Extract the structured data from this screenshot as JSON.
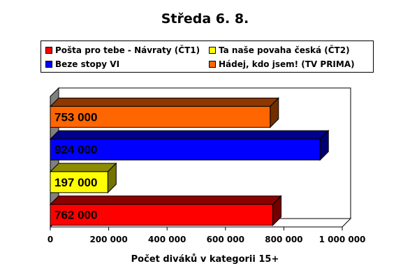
{
  "chart_data": {
    "type": "bar",
    "orientation": "horizontal",
    "3d": true,
    "title": "Středa 6. 8.",
    "xlabel": "Počet diváků v kategorii 15+",
    "ylabel": "",
    "xlim": [
      0,
      1000000
    ],
    "x_ticks": [
      "0",
      "200 000",
      "400 000",
      "600 000",
      "800 000",
      "1 000 000"
    ],
    "legend_position": "top",
    "series": [
      {
        "name": "Pošta pro tebe - Návraty (ČT1)",
        "value": 762000,
        "label": "762 000",
        "color": "#ff0000"
      },
      {
        "name": "Ta naše povaha česká (ČT2)",
        "value": 197000,
        "label": "197 000",
        "color": "#ffff00"
      },
      {
        "name": "Beze stopy VI",
        "value": 924000,
        "label": "924 000",
        "color": "#0000ff"
      },
      {
        "name": "Hádej, kdo jsem! (TV PRIMA)",
        "value": 753000,
        "label": "753 000",
        "color": "#ff6600"
      }
    ],
    "bar_order_top_to_bottom": [
      3,
      2,
      1,
      0
    ]
  }
}
